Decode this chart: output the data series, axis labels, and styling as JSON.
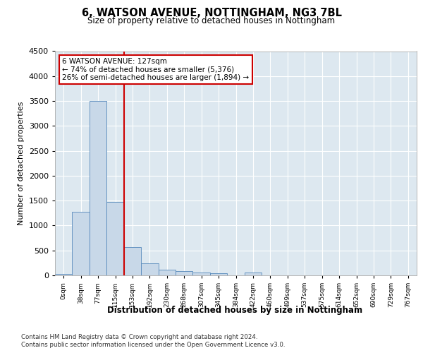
{
  "title1": "6, WATSON AVENUE, NOTTINGHAM, NG3 7BL",
  "title2": "Size of property relative to detached houses in Nottingham",
  "xlabel": "Distribution of detached houses by size in Nottingham",
  "ylabel": "Number of detached properties",
  "bin_labels": [
    "0sqm",
    "38sqm",
    "77sqm",
    "115sqm",
    "153sqm",
    "192sqm",
    "230sqm",
    "268sqm",
    "307sqm",
    "345sqm",
    "384sqm",
    "422sqm",
    "460sqm",
    "499sqm",
    "537sqm",
    "575sqm",
    "614sqm",
    "652sqm",
    "690sqm",
    "729sqm",
    "767sqm"
  ],
  "bar_values": [
    30,
    1270,
    3500,
    1480,
    570,
    235,
    115,
    80,
    55,
    40,
    0,
    55,
    0,
    0,
    0,
    0,
    0,
    0,
    0,
    0,
    0
  ],
  "bar_color": "#c8d8e8",
  "bar_edge_color": "#5588bb",
  "vline_color": "#cc0000",
  "annotation_title": "6 WATSON AVENUE: 127sqm",
  "annotation_line1": "← 74% of detached houses are smaller (5,376)",
  "annotation_line2": "26% of semi-detached houses are larger (1,894) →",
  "annotation_box_color": "#cc0000",
  "ylim": [
    0,
    4500
  ],
  "yticks": [
    0,
    500,
    1000,
    1500,
    2000,
    2500,
    3000,
    3500,
    4000,
    4500
  ],
  "footer1": "Contains HM Land Registry data © Crown copyright and database right 2024.",
  "footer2": "Contains public sector information licensed under the Open Government Licence v3.0.",
  "plot_bg_color": "#dde8f0"
}
